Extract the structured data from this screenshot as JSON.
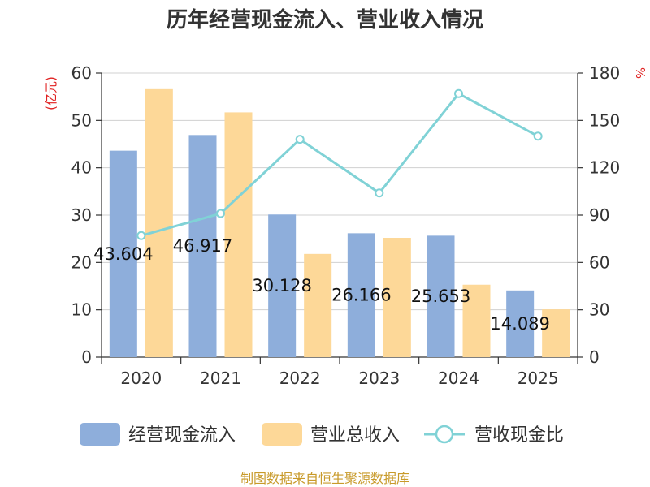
{
  "chart_data": {
    "type": "bar",
    "title": "历年经营现金流入、营业收入情况",
    "categories": [
      "2020",
      "2021",
      "2022",
      "2023",
      "2024",
      "2025"
    ],
    "series": [
      {
        "name": "经营现金流入",
        "type": "bar",
        "axis": "left",
        "values": [
          43.604,
          46.917,
          30.128,
          26.166,
          25.653,
          14.089
        ],
        "color": "#8eaedb"
      },
      {
        "name": "营业总收入",
        "type": "bar",
        "axis": "left",
        "values": [
          56.6,
          51.7,
          21.8,
          25.2,
          15.3,
          10.1
        ],
        "color": "#fdd898"
      },
      {
        "name": "营收现金比",
        "type": "line",
        "axis": "right",
        "values": [
          77,
          91,
          138,
          104,
          167,
          140
        ],
        "color": "#80d2d6"
      }
    ],
    "data_labels": [
      "43.604",
      "46.917",
      "30.128",
      "26.166",
      "25.653",
      "14.089"
    ],
    "left_axis": {
      "label": "(亿元)",
      "ticks": [
        "0",
        "10",
        "20",
        "30",
        "40",
        "50",
        "60"
      ],
      "range": [
        0,
        60
      ]
    },
    "right_axis": {
      "label": "%",
      "ticks": [
        "0",
        "30",
        "60",
        "90",
        "120",
        "150",
        "180"
      ],
      "range": [
        0,
        180
      ]
    },
    "grid": true,
    "legend_position": "bottom",
    "source": "制图数据来自恒生聚源数据库"
  }
}
